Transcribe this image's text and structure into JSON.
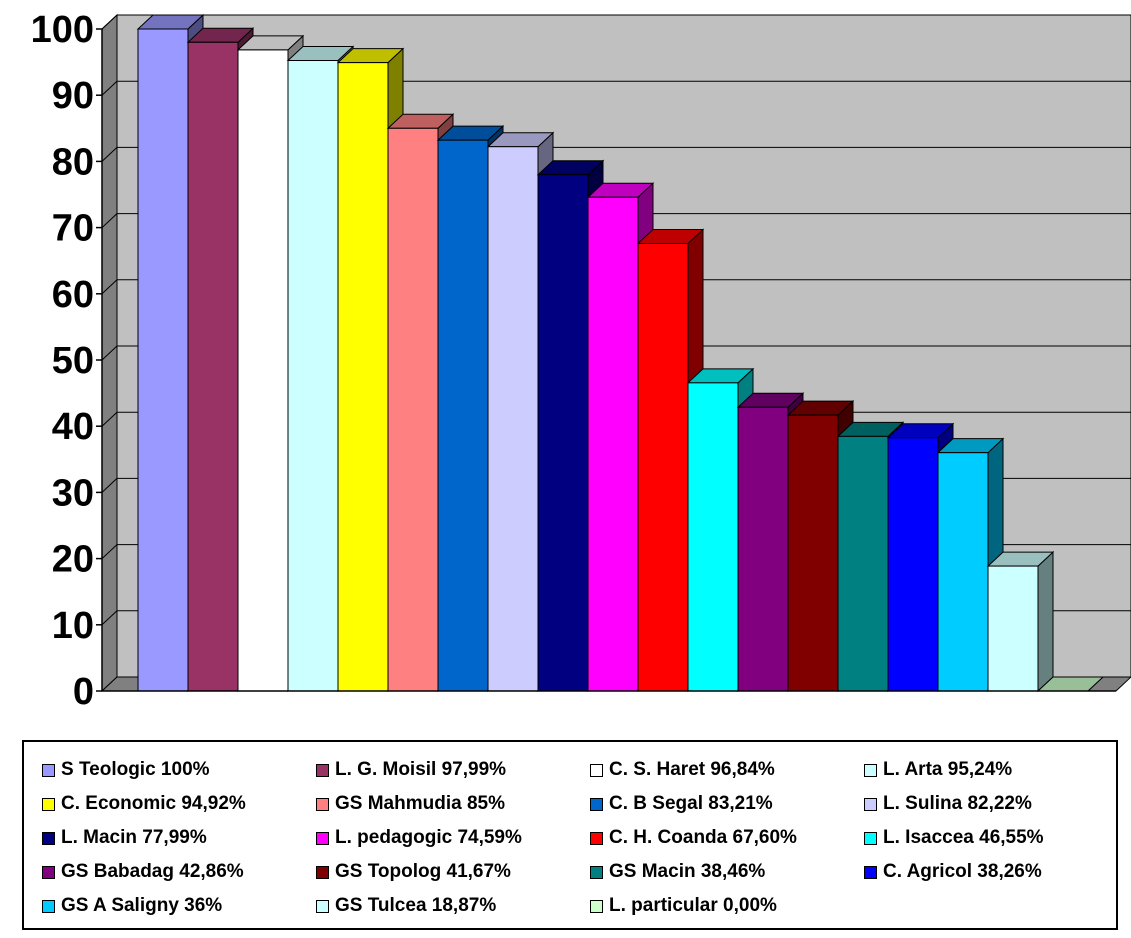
{
  "chart_data": {
    "type": "bar",
    "title": "",
    "xlabel": "",
    "ylabel": "",
    "ylim": [
      0,
      100
    ],
    "yticks": [
      0,
      10,
      20,
      30,
      40,
      50,
      60,
      70,
      80,
      90,
      100
    ],
    "grid": true,
    "legend_position": "bottom",
    "plot_background": "#c0c0c0",
    "series": [
      {
        "label": "S Teologic 100%",
        "value": 100,
        "color": "#9999ff"
      },
      {
        "label": "L. G. Moisil 97,99%",
        "value": 97.99,
        "color": "#993366"
      },
      {
        "label": "C. S. Haret 96,84%",
        "value": 96.84,
        "color": "#ffffff"
      },
      {
        "label": "L. Arta 95,24%",
        "value": 95.24,
        "color": "#ccffff"
      },
      {
        "label": "C. Economic 94,92%",
        "value": 94.92,
        "color": "#ffff00"
      },
      {
        "label": "GS Mahmudia 85%",
        "value": 85,
        "color": "#ff8080"
      },
      {
        "label": "C. B Segal 83,21%",
        "value": 83.21,
        "color": "#0066cc"
      },
      {
        "label": "L. Sulina 82,22%",
        "value": 82.22,
        "color": "#ccccff"
      },
      {
        "label": "L. Macin 77,99%",
        "value": 77.99,
        "color": "#000080"
      },
      {
        "label": "L. pedagogic 74,59%",
        "value": 74.59,
        "color": "#ff00ff"
      },
      {
        "label": "C. H. Coanda 67,60%",
        "value": 67.6,
        "color": "#ff0000"
      },
      {
        "label": "L. Isaccea 46,55%",
        "value": 46.55,
        "color": "#00ffff"
      },
      {
        "label": "GS Babadag 42,86%",
        "value": 42.86,
        "color": "#800080"
      },
      {
        "label": "GS Topolog 41,67%",
        "value": 41.67,
        "color": "#800000"
      },
      {
        "label": "GS Macin 38,46%",
        "value": 38.46,
        "color": "#008080"
      },
      {
        "label": "C. Agricol 38,26%",
        "value": 38.26,
        "color": "#0000ff"
      },
      {
        "label": "GS A Saligny 36%",
        "value": 36,
        "color": "#00ccff"
      },
      {
        "label": "GS Tulcea 18,87%",
        "value": 18.87,
        "color": "#ccffff"
      },
      {
        "label": "L. particular 0,00%",
        "value": 0,
        "color": "#ccffcc"
      }
    ]
  }
}
